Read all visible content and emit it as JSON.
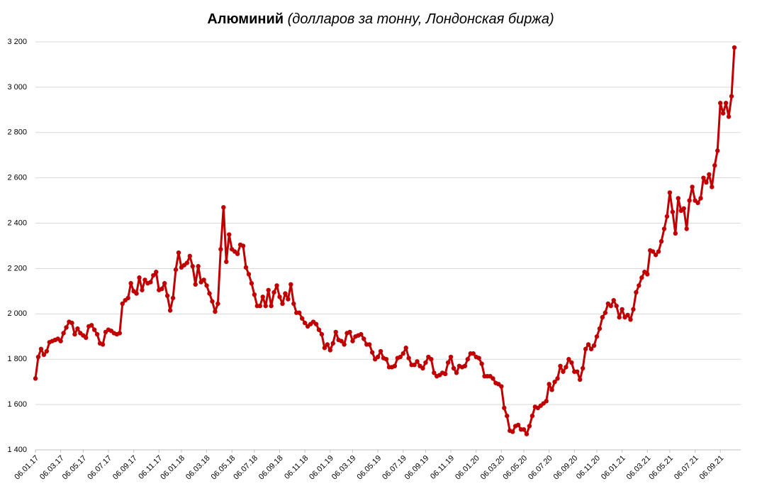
{
  "chart_data": {
    "type": "line",
    "title": "Алюминий",
    "subtitle": "(долларов за тонну, Лондонская биржа)",
    "color": "#c00000",
    "grid": true,
    "ylim": [
      1400,
      3200
    ],
    "yticks": [
      {
        "value": 1400,
        "label": "1 400"
      },
      {
        "value": 1600,
        "label": "1 600"
      },
      {
        "value": 1800,
        "label": "1 800"
      },
      {
        "value": 2000,
        "label": "2 000"
      },
      {
        "value": 2200,
        "label": "2 200"
      },
      {
        "value": 2400,
        "label": "2 400"
      },
      {
        "value": 2600,
        "label": "2 600"
      },
      {
        "value": 2800,
        "label": "2 800"
      },
      {
        "value": 3000,
        "label": "3 000"
      },
      {
        "value": 3200,
        "label": "3 200"
      }
    ],
    "categories": [
      "06.01.17",
      null,
      null,
      null,
      null,
      null,
      null,
      null,
      null,
      "06.03.17",
      null,
      null,
      null,
      null,
      null,
      null,
      null,
      "06.05.17",
      null,
      null,
      null,
      null,
      null,
      null,
      null,
      null,
      "06.07.17",
      null,
      null,
      null,
      null,
      null,
      null,
      null,
      null,
      "06.09.17",
      null,
      null,
      null,
      null,
      null,
      null,
      null,
      null,
      "06.11.17",
      null,
      null,
      null,
      null,
      null,
      null,
      null,
      "06.01.18",
      null,
      null,
      null,
      null,
      null,
      null,
      null,
      null,
      "06.03.18",
      null,
      null,
      null,
      null,
      null,
      null,
      null,
      null,
      "06.05.18",
      null,
      null,
      null,
      null,
      null,
      null,
      null,
      "06.07.18",
      null,
      null,
      null,
      null,
      null,
      null,
      null,
      null,
      "06.09.18",
      null,
      null,
      null,
      null,
      null,
      null,
      null,
      null,
      "06.11.18",
      null,
      null,
      null,
      null,
      null,
      null,
      null,
      null,
      "06.01.19",
      null,
      null,
      null,
      null,
      null,
      null,
      null,
      "06.03.19",
      null,
      null,
      null,
      null,
      null,
      null,
      null,
      null,
      "06.05.19",
      null,
      null,
      null,
      null,
      null,
      null,
      null,
      null,
      "06.07.19",
      null,
      null,
      null,
      null,
      null,
      null,
      null,
      "06.09.19",
      null,
      null,
      null,
      null,
      null,
      null,
      null,
      null,
      "06.11.19",
      null,
      null,
      null,
      null,
      null,
      null,
      null,
      null,
      "06.01.20",
      null,
      null,
      null,
      null,
      null,
      null,
      null,
      null,
      "06.03.20",
      null,
      null,
      null,
      null,
      null,
      null,
      null,
      "06.05.20",
      null,
      null,
      null,
      null,
      null,
      null,
      null,
      null,
      "06.07.20",
      null,
      null,
      null,
      null,
      null,
      null,
      null,
      null,
      "06.09.20",
      null,
      null,
      null,
      null,
      null,
      null,
      null,
      "06.11.20",
      null,
      null,
      null,
      null,
      null,
      null,
      null,
      null,
      "06.01.21",
      null,
      null,
      null,
      null,
      null,
      null,
      null,
      null,
      "06.03.21",
      null,
      null,
      null,
      null,
      null,
      null,
      null,
      "06.05.21",
      null,
      null,
      null,
      null,
      null,
      null,
      null,
      null,
      "06.07.21",
      null,
      null,
      null,
      null,
      null,
      null,
      null,
      null,
      "06.09.21",
      null,
      null,
      null,
      null,
      null
    ],
    "values": [
      1715,
      1810,
      1845,
      1820,
      1835,
      1875,
      1880,
      1885,
      1890,
      1880,
      1915,
      1940,
      1965,
      1960,
      1910,
      1935,
      1915,
      1905,
      1895,
      1945,
      1950,
      1930,
      1910,
      1870,
      1865,
      1920,
      1930,
      1925,
      1915,
      1910,
      1915,
      2045,
      2060,
      2070,
      2135,
      2100,
      2090,
      2160,
      2105,
      2150,
      2135,
      2140,
      2170,
      2185,
      2105,
      2110,
      2135,
      2080,
      2015,
      2070,
      2195,
      2270,
      2205,
      2215,
      2225,
      2255,
      2210,
      2130,
      2210,
      2140,
      2150,
      2125,
      2090,
      2055,
      2010,
      2045,
      2285,
      2470,
      2230,
      2350,
      2285,
      2275,
      2265,
      2305,
      2300,
      2205,
      2175,
      2135,
      2085,
      2035,
      2035,
      2075,
      2035,
      2105,
      2035,
      2095,
      2125,
      2075,
      2045,
      2090,
      2065,
      2130,
      2045,
      2005,
      2005,
      1980,
      1960,
      1945,
      1955,
      1965,
      1955,
      1930,
      1910,
      1850,
      1865,
      1840,
      1870,
      1920,
      1885,
      1880,
      1865,
      1915,
      1920,
      1880,
      1900,
      1905,
      1910,
      1890,
      1865,
      1865,
      1830,
      1800,
      1810,
      1835,
      1805,
      1800,
      1765,
      1765,
      1770,
      1805,
      1810,
      1825,
      1850,
      1805,
      1775,
      1775,
      1790,
      1770,
      1760,
      1785,
      1810,
      1800,
      1740,
      1725,
      1730,
      1740,
      1735,
      1785,
      1810,
      1760,
      1740,
      1770,
      1765,
      1770,
      1800,
      1825,
      1825,
      1810,
      1805,
      1780,
      1725,
      1725,
      1725,
      1715,
      1695,
      1690,
      1680,
      1585,
      1550,
      1485,
      1480,
      1505,
      1510,
      1490,
      1490,
      1470,
      1505,
      1550,
      1590,
      1585,
      1595,
      1605,
      1615,
      1690,
      1665,
      1700,
      1715,
      1770,
      1745,
      1765,
      1800,
      1785,
      1745,
      1745,
      1710,
      1760,
      1845,
      1865,
      1845,
      1860,
      1900,
      1935,
      1985,
      2005,
      2045,
      2035,
      2060,
      2035,
      1985,
      2020,
      1985,
      1995,
      1975,
      2020,
      2095,
      2125,
      2160,
      2185,
      2175,
      2280,
      2275,
      2260,
      2275,
      2320,
      2375,
      2430,
      2535,
      2450,
      2355,
      2510,
      2455,
      2465,
      2375,
      2500,
      2560,
      2500,
      2490,
      2510,
      2600,
      2580,
      2615,
      2560,
      2655,
      2720,
      2930,
      2885,
      2930,
      2870,
      2960,
      3175
    ]
  }
}
